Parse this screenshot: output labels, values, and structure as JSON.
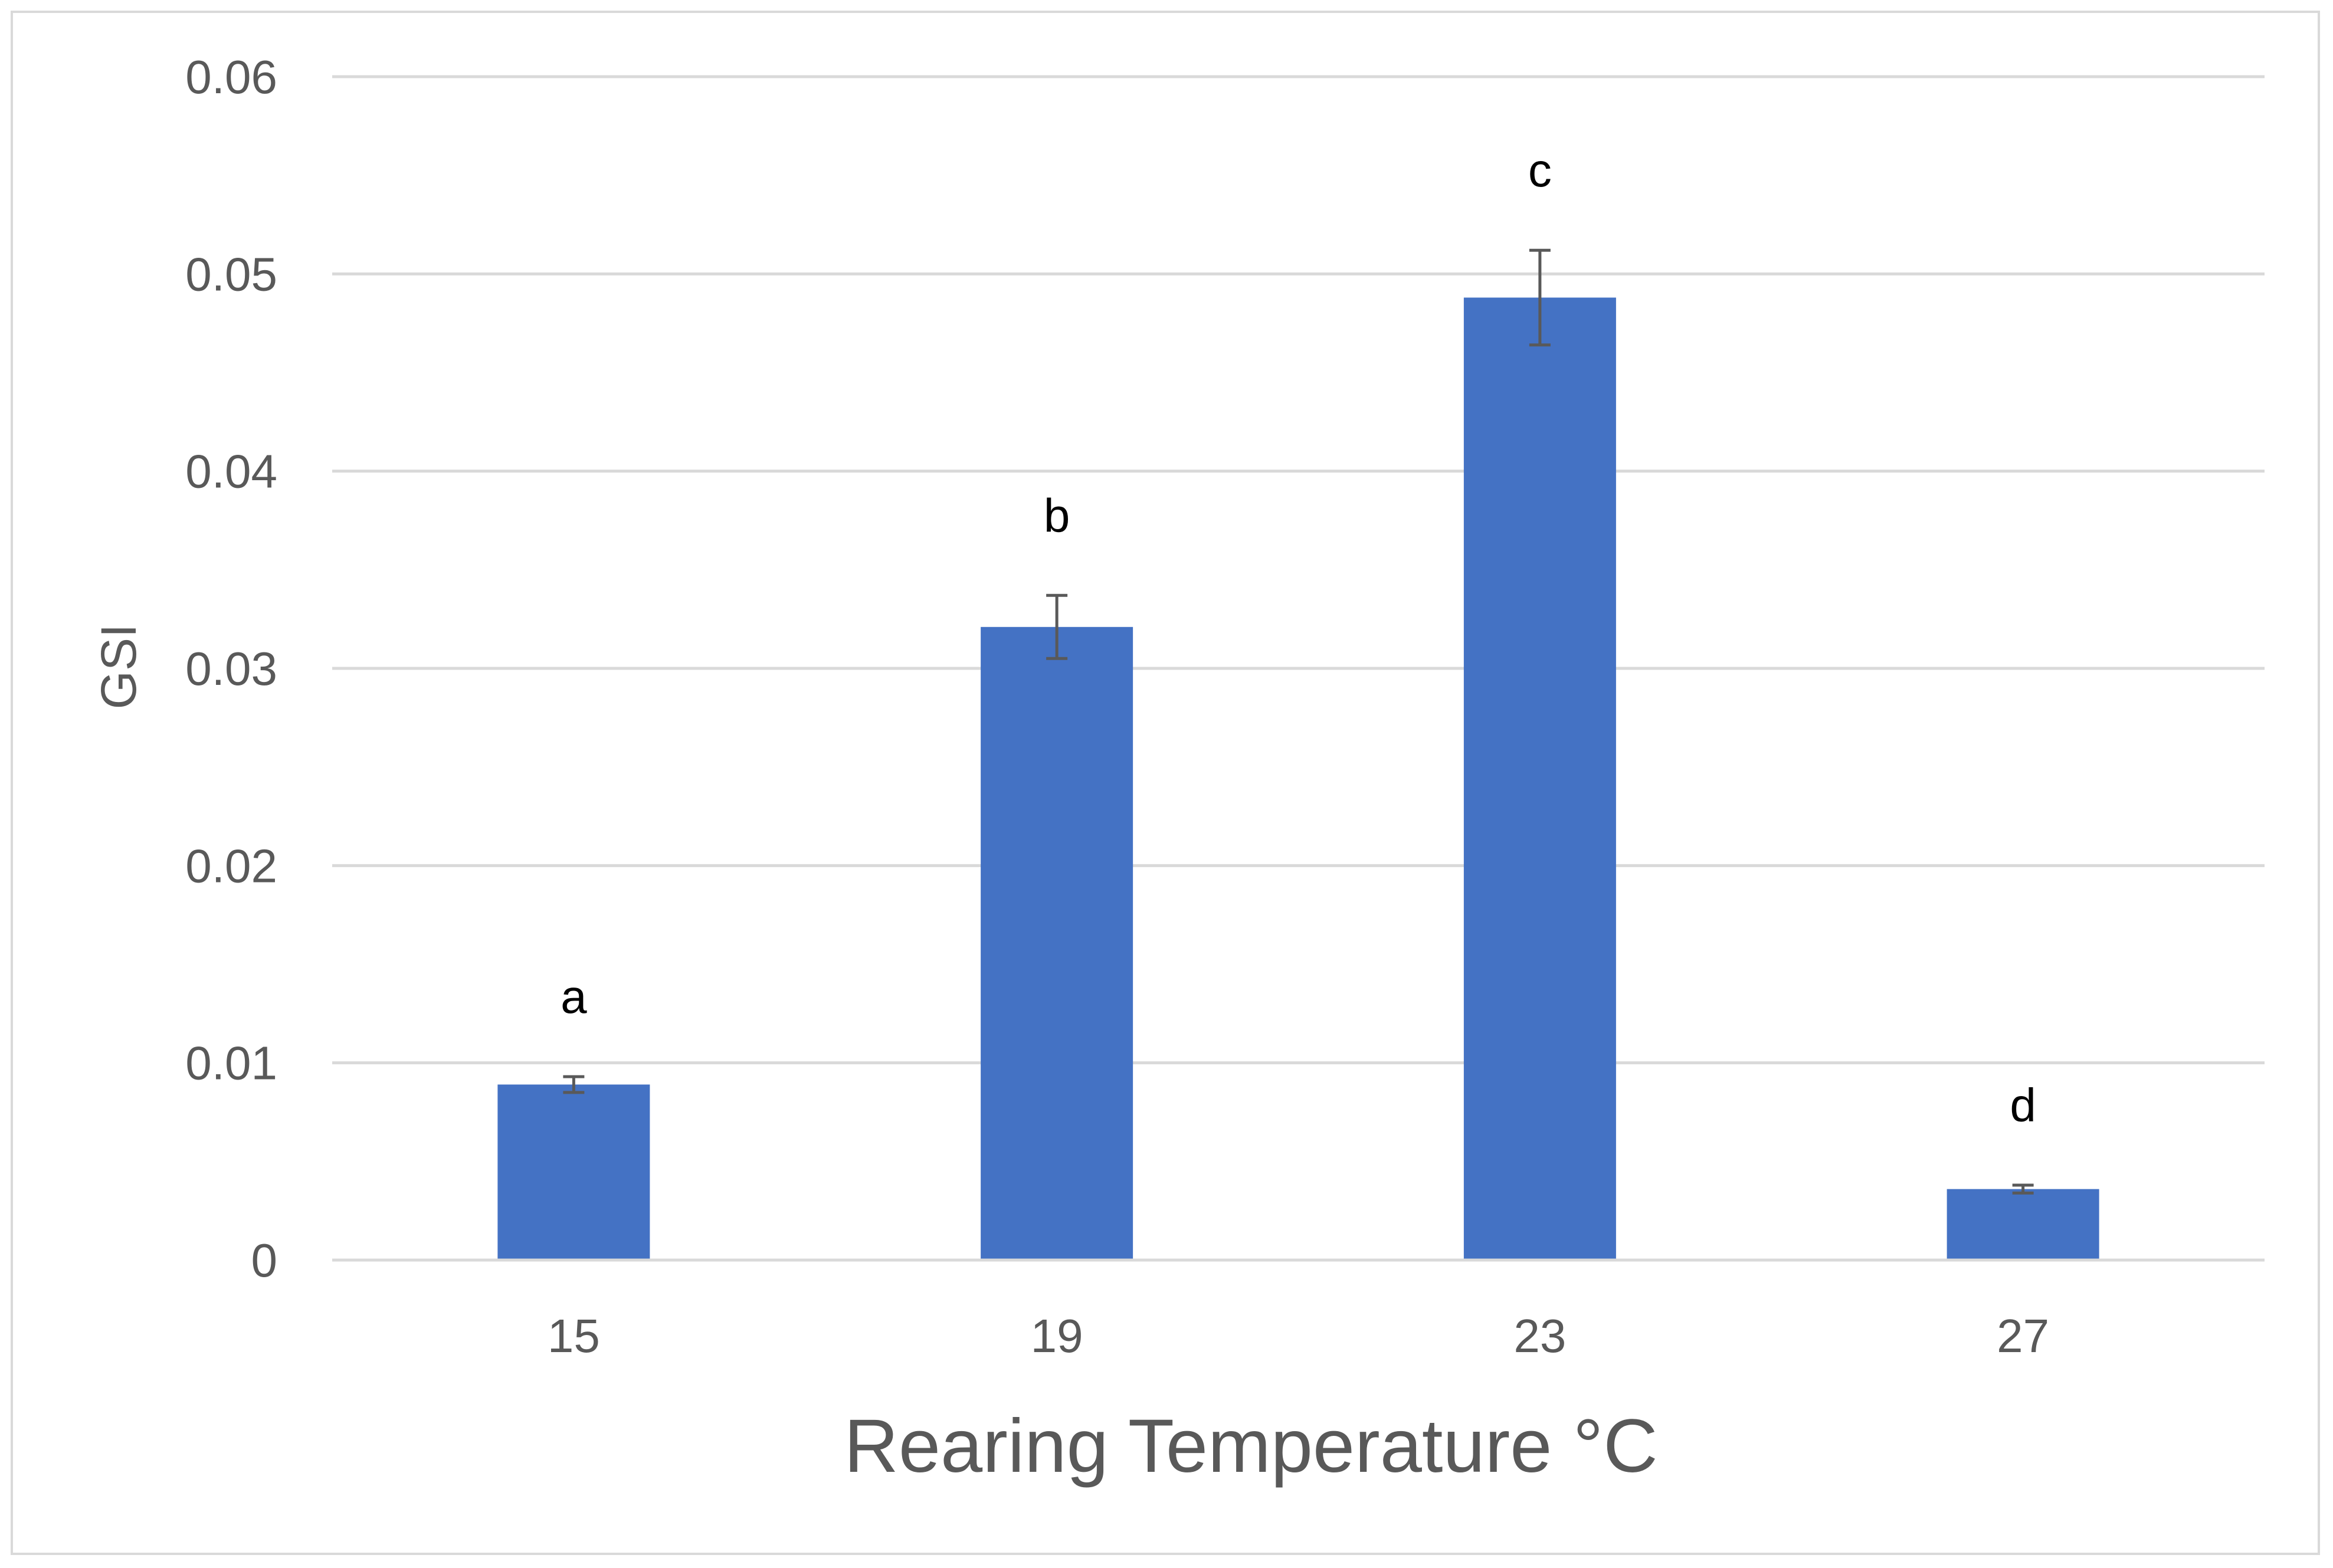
{
  "chart_data": {
    "type": "bar",
    "title": "",
    "xlabel": "Rearing Temperature °C",
    "ylabel": "GSI",
    "categories": [
      "15",
      "19",
      "23",
      "27"
    ],
    "values": [
      0.0089,
      0.0321,
      0.0488,
      0.0036
    ],
    "errors": [
      0.0004,
      0.0016,
      0.0024,
      0.0002
    ],
    "significance_letters": [
      "a",
      "b",
      "c",
      "d"
    ],
    "ylim": [
      0,
      0.06
    ],
    "yticks": [
      0,
      0.01,
      0.02,
      0.03,
      0.04,
      0.05,
      0.06
    ],
    "ytick_labels": [
      "0",
      "0.01",
      "0.02",
      "0.03",
      "0.04",
      "0.05",
      "0.06"
    ],
    "grid": true,
    "legend": "none",
    "bar_color": "#4472c4",
    "error_color": "#595959",
    "grid_color": "#d9d9d9"
  }
}
